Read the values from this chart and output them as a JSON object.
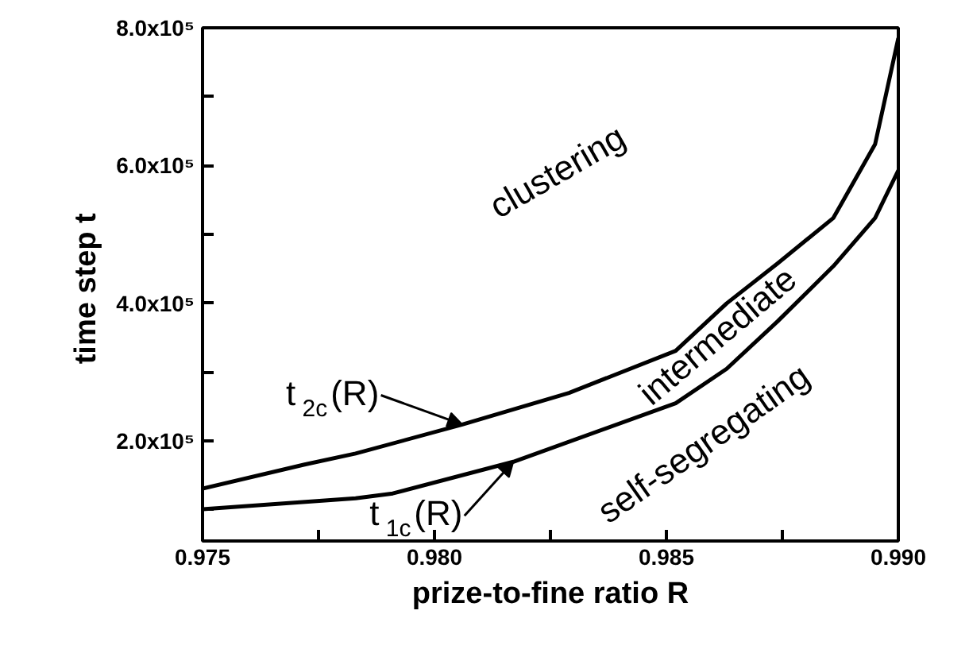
{
  "chart_data": {
    "type": "line",
    "xlabel": "prize-to-fine ratio R",
    "ylabel": "time step  t",
    "xlim": [
      0.975,
      0.99
    ],
    "ylim": [
      55000,
      800000
    ],
    "xticks": [
      0.975,
      {
        "value": 0.9775,
        "label": null
      },
      {
        "value": 0.98,
        "label": "0.980"
      },
      {
        "value": 0.9825,
        "label": null
      },
      0.985,
      {
        "value": 0.9875,
        "label": null
      },
      {
        "value": 0.99,
        "label": "0.990"
      }
    ],
    "yticks": [
      {
        "value": 100000,
        "label": null
      },
      {
        "value": 200000,
        "label": "2.0x10⁵"
      },
      {
        "value": 300000,
        "label": null
      },
      {
        "value": 400000,
        "label": "4.0x10⁵"
      },
      {
        "value": 500000,
        "label": null
      },
      {
        "value": 600000,
        "label": "6.0x10⁵"
      },
      {
        "value": 700000,
        "label": null
      },
      {
        "value": 800000,
        "label": "8.0x10⁵"
      }
    ],
    "grid": false,
    "series": [
      {
        "color": "#000000",
        "x": [
          0.975,
          0.9772,
          0.9783,
          0.9806,
          0.9829,
          0.9852,
          0.9863,
          0.9874,
          0.9886,
          0.9895,
          0.99
        ],
        "values": [
          131000,
          166000,
          182000,
          224000,
          270000,
          331000,
          400000,
          458000,
          524000,
          631000,
          785000
        ]
      },
      {
        "color": "#000000",
        "x": [
          0.975,
          0.9783,
          0.9791,
          0.9817,
          0.9852,
          0.9863,
          0.9874,
          0.9886,
          0.9895,
          0.99
        ],
        "values": [
          101000,
          117000,
          124000,
          170000,
          255000,
          305000,
          374000,
          454000,
          524000,
          593000
        ]
      }
    ],
    "annotations": [
      "clustering",
      "intermediate",
      "self-segregating",
      {
        "text": "t$_{2c}$(R)",
        "x": 0.9806,
        "y": 224000
      },
      {
        "text": "t$_{1c}$(R)",
        "x": 0.9817,
        "y": 170000
      }
    ]
  }
}
